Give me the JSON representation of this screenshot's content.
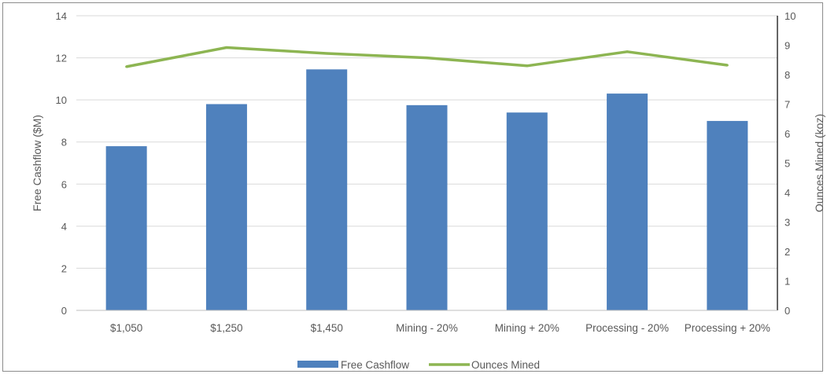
{
  "chart_data": {
    "type": "bar+line",
    "categories": [
      "$1,050",
      "$1,250",
      "$1,450",
      "Mining - 20%",
      "Mining + 20%",
      "Processing - 20%",
      "Processing + 20%"
    ],
    "series": [
      {
        "name": "Free Cashflow",
        "type": "bar",
        "axis": "left",
        "color": "#4f81bd",
        "values": [
          7.8,
          9.8,
          11.45,
          9.75,
          9.4,
          10.3,
          9.0
        ]
      },
      {
        "name": "Ounces Mined",
        "type": "line",
        "axis": "right",
        "color": "#8db552",
        "values": [
          8.27,
          8.92,
          8.72,
          8.57,
          8.3,
          8.78,
          8.32
        ]
      }
    ],
    "ylabel": "Free Cashflow ($M)",
    "y2label": "Ounces Mined (koz)",
    "ylim": [
      0,
      14
    ],
    "y2lim": [
      0,
      10
    ],
    "yticks": [
      0,
      2,
      4,
      6,
      8,
      10,
      12,
      14
    ],
    "y2ticks": [
      0,
      1,
      2,
      3,
      4,
      5,
      6,
      7,
      8,
      9,
      10
    ],
    "grid": true,
    "legend": "bottom-center"
  }
}
